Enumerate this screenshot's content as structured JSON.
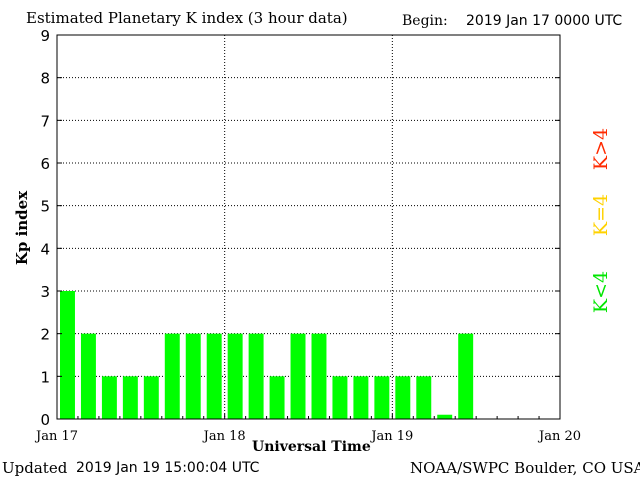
{
  "header": {
    "title": "Estimated Planetary K index (3 hour data)",
    "begin_label": "Begin:",
    "begin_value": "2019 Jan 17 0000 UTC"
  },
  "footer": {
    "updated_label": "Updated",
    "updated_value": "2019 Jan 19 15:00:04 UTC",
    "credit": "NOAA/SWPC Boulder, CO USA"
  },
  "legend": {
    "high": {
      "label": "K>4",
      "color": "#ff2a00"
    },
    "equal": {
      "label": "K=4",
      "color": "#ffd200"
    },
    "low": {
      "label": "K<4",
      "color": "#00e600"
    }
  },
  "chart_data": {
    "type": "bar",
    "title": "Estimated Planetary K index (3 hour data)",
    "xlabel": "Universal Time",
    "ylabel": "Kp index",
    "ylim": [
      0,
      9
    ],
    "yticks": [
      0,
      1,
      2,
      3,
      4,
      5,
      6,
      7,
      8,
      9
    ],
    "x_tick_labels": [
      "Jan 17",
      "Jan 18",
      "Jan 19",
      "Jan 20"
    ],
    "interval_hours": 3,
    "grid": true,
    "bar_color": "#00ff00",
    "values": [
      3,
      2,
      1,
      1,
      1,
      2,
      2,
      2,
      2,
      2,
      1,
      2,
      2,
      1,
      1,
      1,
      1,
      1,
      0.1,
      2
    ]
  }
}
